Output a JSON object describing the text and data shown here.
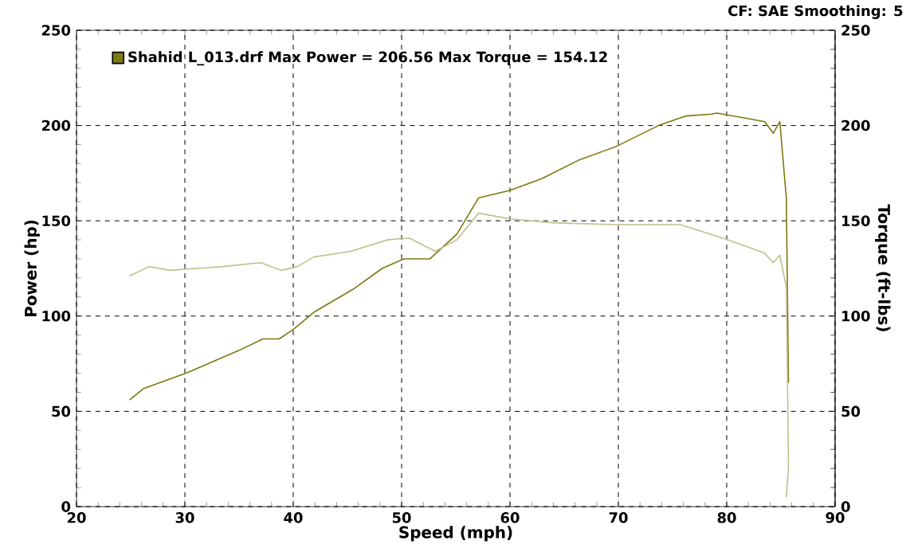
{
  "chart_data": {
    "type": "line",
    "xlabel": "Speed (mph)",
    "ylabel": "Power (hp)",
    "y2label": "Torque (ft-lbs)",
    "annotations": [
      "CF: SAE  Smoothing: 5"
    ],
    "xlim": [
      20,
      90
    ],
    "xticks": [
      20,
      30,
      40,
      50,
      60,
      70,
      80,
      90
    ],
    "ylim": [
      0,
      250
    ],
    "yticks": [
      0,
      50,
      100,
      150,
      200,
      250
    ],
    "y2lim": [
      0,
      250
    ],
    "y2ticks": [
      0,
      50,
      100,
      150,
      200,
      250
    ],
    "grid": true,
    "legend": "top left",
    "marker": "none",
    "line_style": "solid",
    "series": [
      {
        "name": "Shahid L_013.drf Max Power = 206.56      Max Torque = 154.12",
        "color": "#7a7a10",
        "x": [
          24.9,
          26.2,
          30.1,
          35,
          37.2,
          38.7,
          40,
          41.9,
          45.5,
          48.2,
          50.2,
          52.6,
          55.1,
          57.1,
          60,
          62.9,
          66.4,
          69.8,
          73.7,
          76.2,
          78.6,
          79.1,
          81.6,
          83.5,
          84.3,
          84.9,
          85.5,
          85.7
        ],
        "values": [
          56,
          62,
          70,
          82,
          88,
          88,
          93,
          102,
          114,
          125,
          130,
          130,
          143,
          162,
          166,
          172,
          182,
          189,
          200,
          205,
          206,
          206.5,
          204,
          202,
          196,
          202,
          162,
          65
        ]
      },
      {
        "color": "#c0c08c",
        "axis": "y2",
        "x": [
          24.9,
          26.7,
          28.6,
          33.5,
          37,
          38.9,
          40.4,
          41.9,
          45.3,
          48.7,
          50.7,
          53.1,
          55.1,
          57.1,
          60,
          63.9,
          69.8,
          75.7,
          79.6,
          82.1,
          83.5,
          84.3,
          84.9,
          85.5,
          85.7,
          85.5
        ],
        "values": [
          121,
          126,
          124,
          126,
          128,
          124,
          126,
          131,
          134,
          140,
          141,
          134,
          140,
          154,
          151,
          149,
          148,
          148,
          141,
          136,
          133,
          128,
          132,
          115,
          21,
          5
        ]
      }
    ]
  }
}
